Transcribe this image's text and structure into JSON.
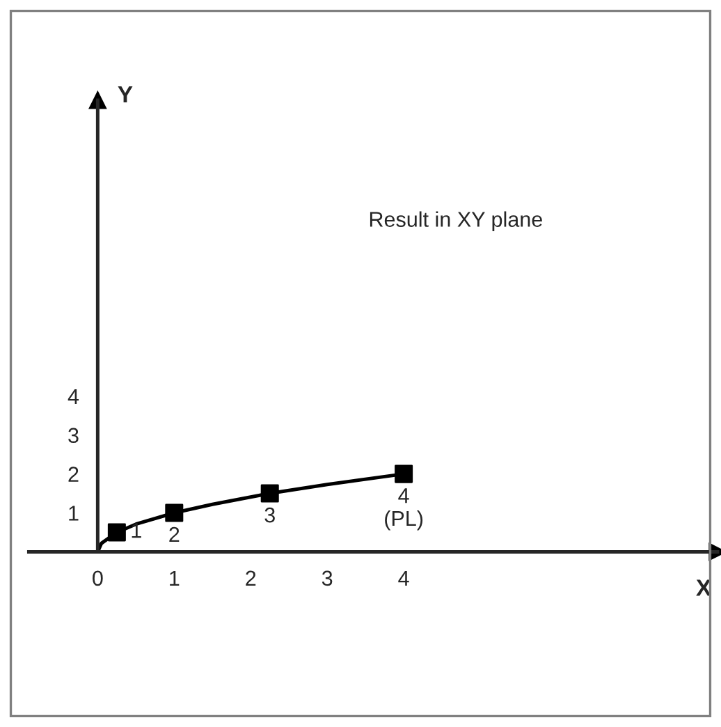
{
  "chart_data": {
    "type": "line",
    "xlabel": "X",
    "ylabel": "Y",
    "xlim": [
      -0.9,
      8.1
    ],
    "ylim": [
      0,
      11.6
    ],
    "xticks": [
      0,
      1,
      2,
      3,
      4
    ],
    "yticks": [
      1,
      2,
      3,
      4
    ],
    "series": [
      {
        "type": "line",
        "color": "#000000",
        "x": [
          0,
          0.05,
          0.25,
          0.5,
          1,
          1.5,
          2.25,
          3,
          4
        ],
        "values": [
          0,
          0.22,
          0.5,
          0.71,
          1,
          1.22,
          1.5,
          1.73,
          2
        ],
        "marker": "none"
      },
      {
        "type": "scatter",
        "color": "#000000",
        "x": [
          0.25,
          1,
          2.25,
          4
        ],
        "values": [
          0.5,
          1,
          1.5,
          2
        ],
        "marker": "square"
      }
    ],
    "annotations": [
      "Result in XY plane",
      {
        "text": "1",
        "x": 0.25,
        "y": 0.5
      },
      {
        "text": "2",
        "x": 1,
        "y": 1
      },
      {
        "text": "3",
        "x": 2.25,
        "y": 1.5
      },
      {
        "text": "4\n(PL)",
        "x": 4,
        "y": 2
      }
    ],
    "grid": false,
    "legend": false
  }
}
